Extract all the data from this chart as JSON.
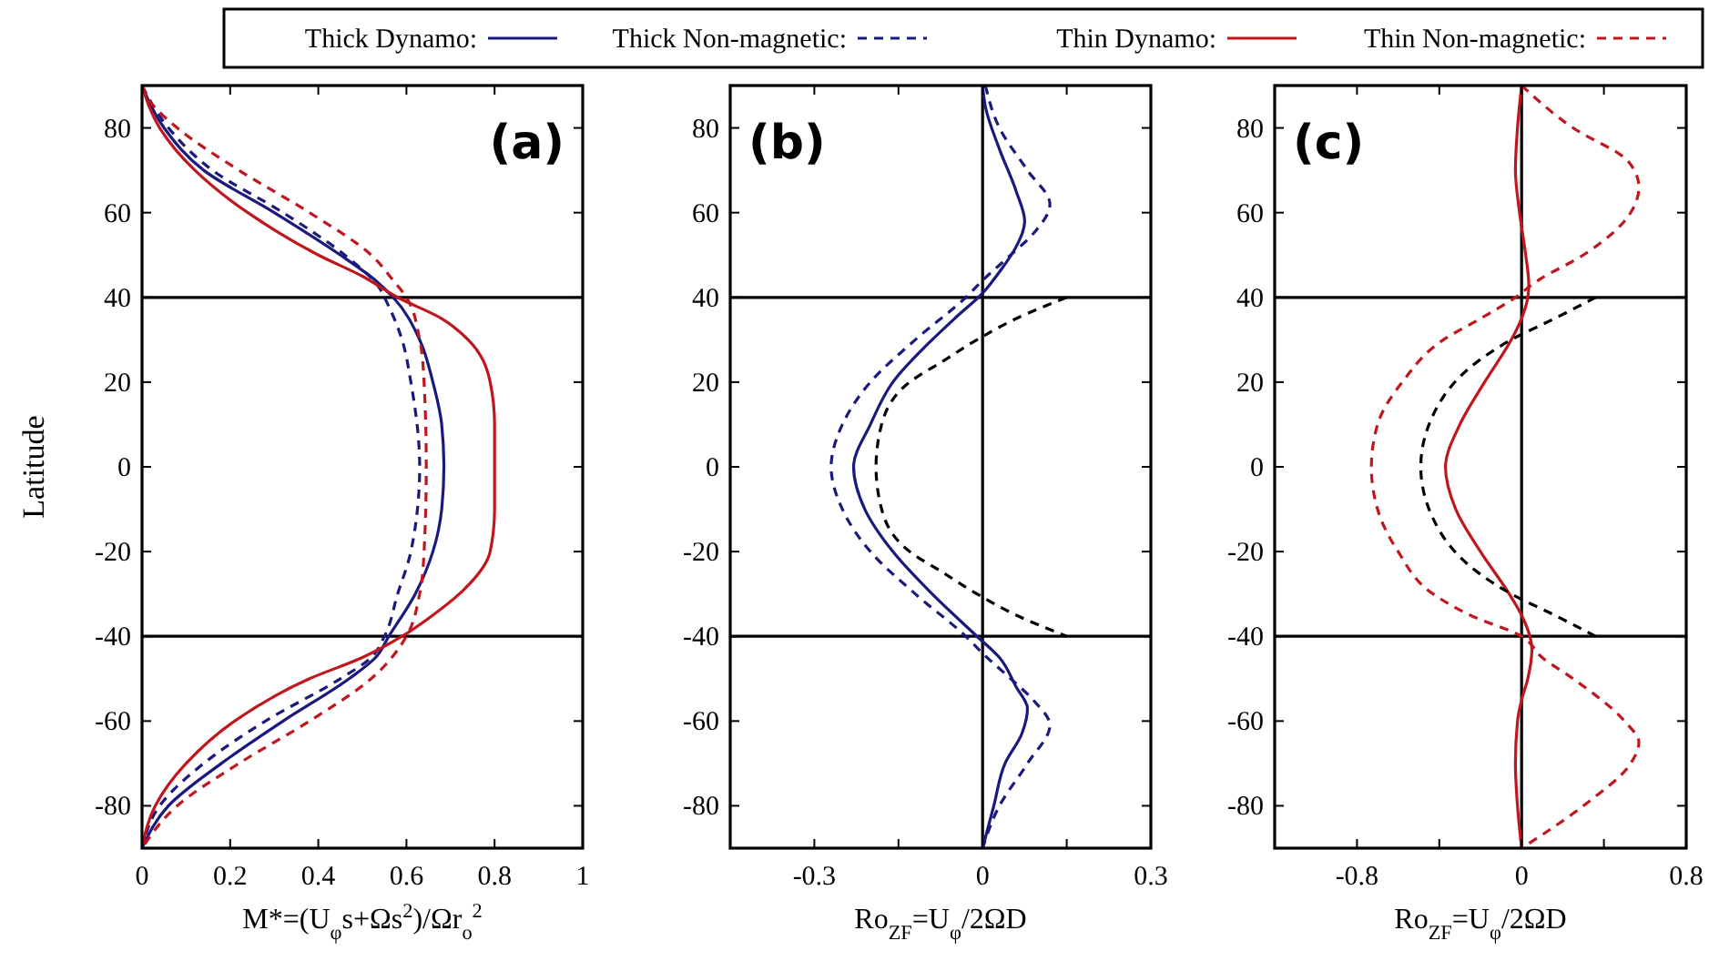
{
  "chart_data": [
    {
      "type": "line",
      "xlabel": "M*=(U$_{φ}$s+Ωs$^{2}$)/Ωr$_{o}$$^{2}$",
      "ylabel": "Latitude",
      "annotations": [
        "(a)"
      ],
      "legend": "top",
      "xlim": [
        0,
        1
      ],
      "ylim": [
        -90,
        90
      ],
      "xticks": [
        0,
        0.2,
        0.4,
        0.6,
        0.8,
        1.0
      ],
      "yticks": [
        -80,
        -60,
        -40,
        -20,
        0,
        20,
        40,
        60,
        80
      ],
      "ref_lines": [
        {
          "axis": "y",
          "value": 40,
          "color": "#000000"
        },
        {
          "axis": "y",
          "value": -40,
          "color": "#000000"
        }
      ],
      "series": [
        {
          "name": "Thick Dynamo:",
          "color": "#1a1a7e",
          "line_style": "solid",
          "x": [
            0,
            0.05,
            0.14,
            0.3,
            0.45,
            0.53,
            0.57,
            0.63,
            0.66,
            0.68,
            0.685,
            0.68,
            0.66,
            0.62,
            0.56,
            0.53,
            0.47,
            0.32,
            0.18,
            0.06,
            0
          ],
          "values": [
            90,
            80,
            70,
            60,
            50,
            44,
            40,
            30,
            20,
            10,
            0,
            -10,
            -20,
            -30,
            -40,
            -45,
            -50,
            -60,
            -70,
            -80,
            -90
          ]
        },
        {
          "name": "Thick Non-magnetic:",
          "color": "#1a1a7e",
          "line_style": "dashed",
          "x": [
            0,
            0.06,
            0.16,
            0.32,
            0.46,
            0.54,
            0.55,
            0.59,
            0.61,
            0.63,
            0.61,
            0.58,
            0.55,
            0.52,
            0.45,
            0.28,
            0.14,
            0.04,
            0
          ],
          "values": [
            90,
            80,
            70,
            60,
            50,
            42,
            40,
            30,
            20,
            0,
            -20,
            -30,
            -40,
            -45,
            -50,
            -60,
            -70,
            -80,
            -90
          ]
        },
        {
          "name": "Thin Dynamo:",
          "color": "#c0161d",
          "line_style": "solid",
          "x": [
            0,
            0.04,
            0.12,
            0.24,
            0.4,
            0.5,
            0.58,
            0.68,
            0.74,
            0.79,
            0.8,
            0.8,
            0.8,
            0.79,
            0.72,
            0.66,
            0.59,
            0.5,
            0.38,
            0.21,
            0.1,
            0.03,
            0
          ],
          "values": [
            90,
            80,
            70,
            60,
            50,
            45,
            40,
            35,
            30,
            20,
            10,
            0,
            -10,
            -20,
            -30,
            -35,
            -40,
            -45,
            -50,
            -60,
            -70,
            -80,
            -90
          ]
        },
        {
          "name": "Thin Non-magnetic:",
          "color": "#c0161d",
          "line_style": "dashed",
          "x": [
            0,
            0.02,
            0.08,
            0.22,
            0.38,
            0.52,
            0.57,
            0.6,
            0.63,
            0.64,
            0.645,
            0.64,
            0.63,
            0.6,
            0.52,
            0.38,
            0.22,
            0.08,
            0
          ],
          "values": [
            90,
            86,
            80,
            70,
            60,
            50,
            44,
            40,
            30,
            20,
            0,
            -20,
            -30,
            -40,
            -50,
            -60,
            -70,
            -80,
            -90
          ]
        }
      ]
    },
    {
      "type": "line",
      "xlabel": "Ro$_{ZF}$=U$_{φ}$/2ΩD",
      "annotations": [
        "(b)"
      ],
      "xlim": [
        -0.45,
        0.3
      ],
      "ylim": [
        -90,
        90
      ],
      "xticks": [
        -0.3,
        {
          "value": -0.15,
          "label": null
        },
        0,
        {
          "value": 0.15,
          "label": null
        },
        0.3
      ],
      "yticks": [
        -80,
        -60,
        -40,
        -20,
        0,
        20,
        40,
        60,
        80
      ],
      "ref_lines": [
        {
          "axis": "y",
          "value": 40,
          "color": "#000000"
        },
        {
          "axis": "y",
          "value": -40,
          "color": "#000000"
        },
        {
          "axis": "x",
          "value": 0,
          "color": "#000000"
        }
      ],
      "series": [
        {
          "color": "#1a1a7e",
          "line_style": "solid",
          "x": [
            0,
            0.005,
            0.03,
            0.06,
            0.075,
            0.06,
            0.03,
            0,
            -0.05,
            -0.09,
            -0.16,
            -0.2,
            -0.23,
            -0.21,
            -0.16,
            -0.09,
            -0.01,
            0.03,
            0.06,
            0.08,
            0.07,
            0.04,
            0.02,
            0
          ],
          "values": [
            90,
            85,
            75,
            65,
            58,
            52,
            46,
            41,
            35,
            30,
            20,
            10,
            0,
            -10,
            -20,
            -30,
            -40,
            -45,
            -52,
            -57,
            -63,
            -70,
            -80,
            -90
          ]
        },
        {
          "color": "#1a1a7e",
          "line_style": "dashed",
          "x": [
            0.005,
            0.03,
            0.08,
            0.12,
            0.09,
            0.05,
            0,
            -0.03,
            -0.12,
            -0.2,
            -0.25,
            -0.27,
            -0.25,
            -0.2,
            -0.12,
            -0.03,
            0,
            0.05,
            0.09,
            0.12,
            0.08,
            0.03,
            0
          ],
          "values": [
            90,
            80,
            70,
            62,
            55,
            50,
            44,
            40,
            30,
            20,
            10,
            0,
            -10,
            -20,
            -30,
            -40,
            -44,
            -50,
            -55,
            -61,
            -70,
            -80,
            -90
          ]
        },
        {
          "color": "#000000",
          "line_style": "dashed",
          "x": [
            0.15,
            0.06,
            -0.01,
            -0.07,
            -0.13,
            -0.18,
            -0.19,
            -0.18,
            -0.13,
            -0.07,
            -0.01,
            0.06,
            0.15
          ],
          "values": [
            40,
            35,
            30,
            25,
            20,
            10,
            0,
            -10,
            -20,
            -25,
            -30,
            -35,
            -40
          ]
        }
      ]
    },
    {
      "type": "line",
      "xlabel": "Ro$_{ZF}$=U$_{φ}$/2ΩD",
      "annotations": [
        "(c)"
      ],
      "xlim": [
        -1.2,
        0.8
      ],
      "ylim": [
        -90,
        90
      ],
      "xticks": [
        -0.8,
        {
          "value": -0.4,
          "label": null
        },
        0,
        {
          "value": 0.4,
          "label": null
        },
        0.8
      ],
      "yticks": [
        -80,
        -60,
        -40,
        -20,
        0,
        20,
        40,
        60,
        80
      ],
      "ref_lines": [
        {
          "axis": "y",
          "value": 40,
          "color": "#000000"
        },
        {
          "axis": "y",
          "value": -40,
          "color": "#000000"
        },
        {
          "axis": "x",
          "value": 0,
          "color": "#000000"
        }
      ],
      "series": [
        {
          "color": "#c0161d",
          "line_style": "solid",
          "x": [
            0,
            -0.02,
            -0.03,
            -0.01,
            0.02,
            0.035,
            0.03,
            0,
            -0.05,
            -0.18,
            -0.3,
            -0.37,
            -0.32,
            -0.2,
            -0.06,
            0,
            0.04,
            0.05,
            0.03,
            0,
            -0.02,
            -0.03,
            -0.02,
            0
          ],
          "values": [
            90,
            80,
            70,
            60,
            50,
            43,
            40,
            35,
            30,
            20,
            10,
            0,
            -10,
            -20,
            -30,
            -35,
            -40,
            -43,
            -50,
            -55,
            -60,
            -70,
            -80,
            -90
          ]
        },
        {
          "color": "#c0161d",
          "line_style": "dashed",
          "x": [
            0,
            0.25,
            0.52,
            0.57,
            0.53,
            0.3,
            0.08,
            -0.03,
            -0.2,
            -0.38,
            -0.58,
            -0.7,
            -0.73,
            -0.7,
            -0.6,
            -0.43,
            -0.25,
            0,
            0.1,
            0.25,
            0.5,
            0.57,
            0.53,
            0.3,
            0
          ],
          "values": [
            90,
            80,
            72,
            66,
            60,
            50,
            44,
            40,
            35,
            30,
            20,
            10,
            0,
            -10,
            -20,
            -30,
            -35,
            -40,
            -45,
            -50,
            -60,
            -65,
            -70,
            -80,
            -90
          ]
        },
        {
          "color": "#000000",
          "line_style": "dashed",
          "x": [
            0.36,
            0.16,
            -0.05,
            -0.21,
            -0.4,
            -0.49,
            -0.4,
            -0.21,
            -0.05,
            0.16,
            0.36
          ],
          "values": [
            40,
            35,
            30,
            25,
            15,
            0,
            -15,
            -25,
            -30,
            -35,
            -40
          ]
        }
      ]
    }
  ]
}
